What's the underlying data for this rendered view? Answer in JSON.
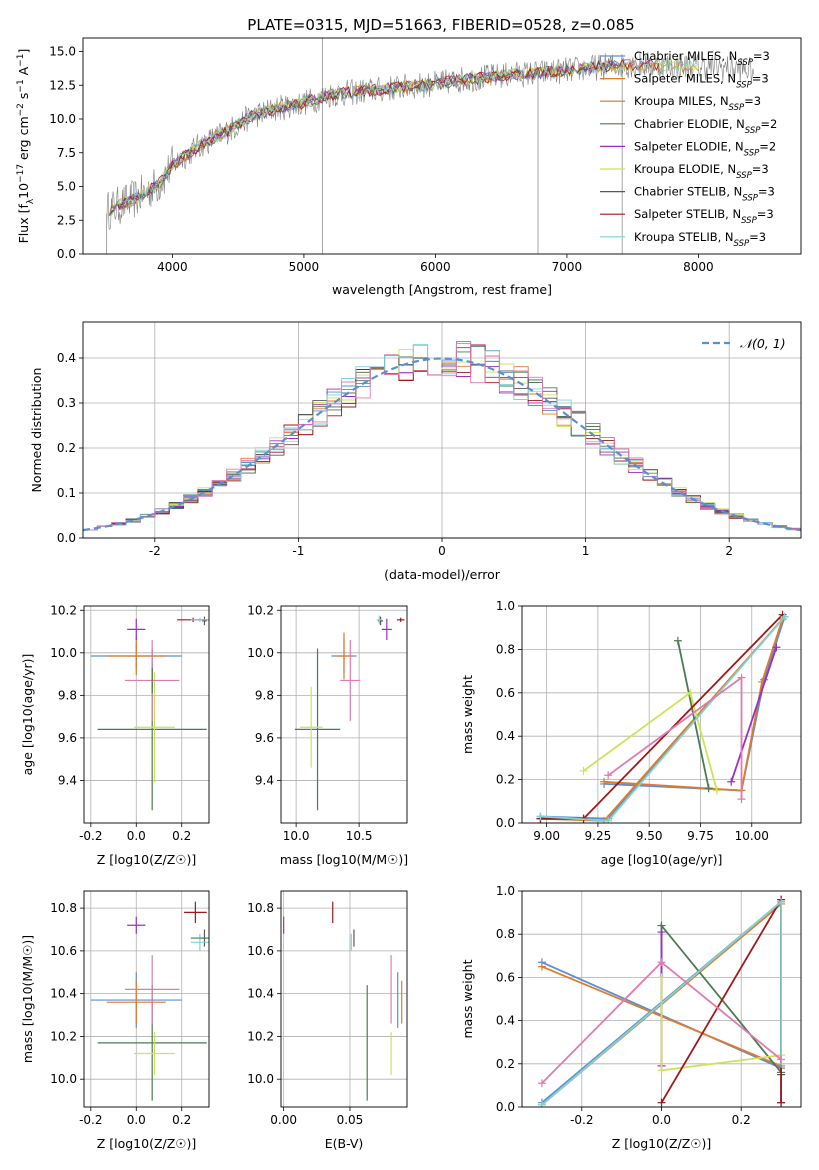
{
  "figure_title": "PLATE=0315, MJD=51663, FIBERID=0528, z=0.085",
  "model_colors": [
    "#5b8fd0",
    "#e07b2a",
    "#4c7a55",
    "#9b2fc4",
    "#cde35a",
    "#595959",
    "#a01818",
    "#7fd3d8",
    "#e07bb0"
  ],
  "chart_data": [
    {
      "id": "spectrum",
      "type": "line",
      "title": "PLATE=0315, MJD=51663, FIBERID=0528, z=0.085",
      "xlabel": "wavelength [Angstrom, rest frame]",
      "ylabel": "Flux [f_λ 10^-17 erg cm^-2 s^-1 A^-1]",
      "xlim": [
        3320,
        8780
      ],
      "ylim": [
        0,
        16
      ],
      "xticks": [
        4000,
        5000,
        6000,
        7000,
        8000
      ],
      "yticks": [
        0.0,
        2.5,
        5.0,
        7.5,
        10.0,
        12.5,
        15.0
      ],
      "grid": false,
      "legend_position": "right",
      "data_series": {
        "name": "",
        "color": "#808080",
        "x": [
          3500,
          3700,
          3900,
          4000,
          4200,
          4400,
          4600,
          4800,
          5000,
          5200,
          5400,
          5600,
          5800,
          6000,
          6200,
          6400,
          6600,
          6800,
          7000,
          7200,
          7400,
          7600,
          7800,
          8000,
          8200,
          8400
        ],
        "y": [
          3.2,
          4.0,
          5.2,
          6.6,
          8.0,
          9.0,
          10.2,
          10.8,
          11.2,
          11.8,
          12.0,
          12.2,
          12.4,
          12.6,
          12.9,
          13.1,
          13.3,
          13.4,
          13.6,
          13.8,
          14.0,
          14.0,
          13.9,
          13.9,
          13.8,
          13.6
        ]
      },
      "series": [
        {
          "name": "Chabrier MILES, N_SSP=3",
          "color": "#5b8fd0"
        },
        {
          "name": "Salpeter MILES, N_SSP=3",
          "color": "#e07b2a"
        },
        {
          "name": "Kroupa MILES, N_SSP=3",
          "color": "#cc7a2b"
        },
        {
          "name": "Chabrier ELODIE, N_SSP=2",
          "color": "#4c7a55"
        },
        {
          "name": "Salpeter ELODIE, N_SSP=2",
          "color": "#9b2fc4"
        },
        {
          "name": "Kroupa ELODIE, N_SSP=3",
          "color": "#cde35a"
        },
        {
          "name": "Chabrier STELIB, N_SSP=3",
          "color": "#595959"
        },
        {
          "name": "Salpeter STELIB, N_SSP=3",
          "color": "#a01818"
        },
        {
          "name": "Kroupa STELIB, N_SSP=3",
          "color": "#7fd3d8"
        }
      ]
    },
    {
      "id": "residuals",
      "type": "line",
      "xlabel": "(data-model)/error",
      "ylabel": "Normed distribution",
      "xlim": [
        -2.5,
        2.5
      ],
      "ylim": [
        0,
        0.48
      ],
      "xticks": [
        -2,
        -1,
        0,
        1,
        2
      ],
      "yticks": [
        0.0,
        0.1,
        0.2,
        0.3,
        0.4
      ],
      "grid": true,
      "legend_position": "top-right",
      "series": [
        {
          "name": "𝒩(0, 1)",
          "color": "#5b8fd0",
          "style": "dashed",
          "mu": 0,
          "sigma": 1
        }
      ],
      "histogram_bin_width": 0.1
    },
    {
      "id": "age-vs-Z",
      "type": "scatter",
      "xlabel": "Z [log10(Z/Z☉)]",
      "ylabel": "age [log10(age/yr)]",
      "xlim": [
        -0.23,
        0.32
      ],
      "ylim": [
        9.2,
        10.22
      ],
      "xticks": [
        -0.2,
        0.0,
        0.2
      ],
      "yticks": [
        9.4,
        9.6,
        9.8,
        10.0,
        10.2
      ],
      "grid": true,
      "points": [
        {
          "c": 0,
          "x": 0.0,
          "y": 9.985,
          "xerr": 0.2,
          "yerr": 0.06
        },
        {
          "c": 1,
          "x": 0.0,
          "y": 9.985,
          "xerr": 0.13,
          "yerr": 0.09
        },
        {
          "c": 2,
          "x": 0.07,
          "y": 9.64,
          "xerr": 0.24,
          "yerr": 0.38
        },
        {
          "c": 3,
          "x": 0.0,
          "y": 10.11,
          "xerr": 0.04,
          "yerr": 0.05
        },
        {
          "c": 4,
          "x": 0.08,
          "y": 9.65,
          "xerr": 0.09,
          "yerr": 0.26
        },
        {
          "c": 5,
          "x": 0.3,
          "y": 10.15,
          "xerr": 0.01,
          "yerr": 0.02
        },
        {
          "c": 6,
          "x": 0.25,
          "y": 10.155,
          "xerr": 0.07,
          "yerr": 0.01
        },
        {
          "c": 7,
          "x": 0.28,
          "y": 10.155,
          "xerr": 0.04,
          "yerr": 0.01
        },
        {
          "c": 8,
          "x": 0.07,
          "y": 9.87,
          "xerr": 0.12,
          "yerr": 0.19
        },
        {
          "c": 2,
          "x": 0.07,
          "y": 9.87,
          "xerr": 0.0,
          "yerr": 0.06
        }
      ]
    },
    {
      "id": "age-vs-mass",
      "type": "scatter",
      "xlabel": "mass [log10(M/M☉)]",
      "ylabel": "",
      "xlim": [
        9.88,
        10.88
      ],
      "ylim": [
        9.2,
        10.22
      ],
      "xticks": [
        10.0,
        10.5
      ],
      "yticks": [
        9.4,
        9.6,
        9.8,
        10.0,
        10.2
      ],
      "grid": true,
      "points": [
        {
          "c": 0,
          "x": 10.38,
          "y": 9.985,
          "xerr": 0.1,
          "yerr": 0.08
        },
        {
          "c": 1,
          "x": 10.38,
          "y": 9.985,
          "xerr": 0.06,
          "yerr": 0.11
        },
        {
          "c": 2,
          "x": 10.17,
          "y": 9.64,
          "xerr": 0.18,
          "yerr": 0.38
        },
        {
          "c": 3,
          "x": 10.72,
          "y": 10.11,
          "xerr": 0.04,
          "yerr": 0.05
        },
        {
          "c": 4,
          "x": 10.12,
          "y": 9.65,
          "xerr": 0.09,
          "yerr": 0.19
        },
        {
          "c": 5,
          "x": 10.67,
          "y": 10.15,
          "xerr": 0.02,
          "yerr": 0.02
        },
        {
          "c": 6,
          "x": 10.83,
          "y": 10.155,
          "xerr": 0.03,
          "yerr": 0.01
        },
        {
          "c": 7,
          "x": 10.66,
          "y": 10.155,
          "xerr": 0.02,
          "yerr": 0.02
        },
        {
          "c": 8,
          "x": 10.43,
          "y": 9.87,
          "xerr": 0.08,
          "yerr": 0.19
        }
      ]
    },
    {
      "id": "massweight-vs-age",
      "type": "line",
      "xlabel": "age [log10(age/yr)]",
      "ylabel": "mass weight",
      "xlim": [
        8.88,
        10.24
      ],
      "ylim": [
        0,
        1.0
      ],
      "xticks": [
        9.0,
        9.25,
        9.5,
        9.75,
        10.0
      ],
      "yticks": [
        0.0,
        0.2,
        0.4,
        0.6,
        0.8,
        1.0
      ],
      "grid": true,
      "series": [
        {
          "name": "Chabrier MILES",
          "c": 0,
          "x": [
            8.97,
            9.3,
            10.16,
            10.06,
            9.95,
            9.28
          ],
          "y": [
            0.03,
            0.02,
            0.95,
            0.66,
            0.15,
            0.18
          ]
        },
        {
          "name": "Salpeter MILES",
          "c": 1,
          "x": [
            8.97,
            9.28,
            10.15,
            10.05,
            9.95,
            9.28
          ],
          "y": [
            0.02,
            0.01,
            0.94,
            0.65,
            0.15,
            0.19
          ]
        },
        {
          "name": "Chabrier ELODIE",
          "c": 2,
          "x": [
            9.79,
            9.64
          ],
          "y": [
            0.16,
            0.84
          ]
        },
        {
          "name": "Salpeter ELODIE",
          "c": 3,
          "x": [
            9.9,
            10.12
          ],
          "y": [
            0.19,
            0.81
          ]
        },
        {
          "name": "Kroupa ELODIE",
          "c": 4,
          "x": [
            9.18,
            9.7,
            9.83
          ],
          "y": [
            0.24,
            0.6,
            0.15
          ]
        },
        {
          "name": "Chabrier STELIB",
          "c": 5,
          "x": [
            8.97,
            9.18
          ],
          "y": [
            0.02,
            0.02
          ]
        },
        {
          "name": "Salpeter STELIB",
          "c": 6,
          "x": [
            8.97,
            9.18,
            10.15
          ],
          "y": [
            0.02,
            0.02,
            0.96
          ]
        },
        {
          "name": "Kroupa STELIB",
          "c": 7,
          "x": [
            8.97,
            9.3,
            10.16
          ],
          "y": [
            0.03,
            0.01,
            0.95
          ]
        },
        {
          "name": "Kroupa MILES",
          "c": 8,
          "x": [
            9.3,
            9.95,
            9.95
          ],
          "y": [
            0.22,
            0.67,
            0.11
          ]
        }
      ]
    },
    {
      "id": "mass-vs-Z",
      "type": "scatter",
      "xlabel": "Z [log10(Z/Z☉)]",
      "ylabel": "mass [log10(M/M☉)]",
      "xlim": [
        -0.23,
        0.32
      ],
      "ylim": [
        9.87,
        10.88
      ],
      "xticks": [
        -0.2,
        0.0,
        0.2
      ],
      "yticks": [
        10.0,
        10.2,
        10.4,
        10.6,
        10.8
      ],
      "grid": true,
      "points": [
        {
          "c": 0,
          "x": 0.0,
          "y": 10.37,
          "xerr": 0.2,
          "yerr": 0.13
        },
        {
          "c": 1,
          "x": 0.0,
          "y": 10.36,
          "xerr": 0.13,
          "yerr": 0.1
        },
        {
          "c": 2,
          "x": 0.07,
          "y": 10.17,
          "xerr": 0.24,
          "yerr": 0.27
        },
        {
          "c": 3,
          "x": 0.0,
          "y": 10.72,
          "xerr": 0.04,
          "yerr": 0.04
        },
        {
          "c": 4,
          "x": 0.08,
          "y": 10.12,
          "xerr": 0.09,
          "yerr": 0.1
        },
        {
          "c": 5,
          "x": 0.3,
          "y": 10.66,
          "xerr": 0.01,
          "yerr": 0.04
        },
        {
          "c": 6,
          "x": 0.26,
          "y": 10.78,
          "xerr": 0.05,
          "yerr": 0.05
        },
        {
          "c": 7,
          "x": 0.28,
          "y": 10.64,
          "xerr": 0.04,
          "yerr": 0.04
        },
        {
          "c": 8,
          "x": 0.07,
          "y": 10.42,
          "xerr": 0.12,
          "yerr": 0.16
        },
        {
          "c": 2,
          "x": 0.3,
          "y": 10.66,
          "xerr": 0.06,
          "yerr": 0.0
        }
      ]
    },
    {
      "id": "mass-vs-ebv",
      "type": "scatter",
      "xlabel": "E(B-V)",
      "ylabel": "",
      "xlim": [
        -0.002,
        0.093
      ],
      "ylim": [
        9.87,
        10.88
      ],
      "xticks": [
        0.0,
        0.05
      ],
      "yticks": [
        10.0,
        10.2,
        10.4,
        10.6,
        10.8
      ],
      "grid": true,
      "points": [
        {
          "c": 0,
          "x": 0.086,
          "y": 10.37,
          "xerr": 0,
          "yerr": 0.13
        },
        {
          "c": 1,
          "x": 0.089,
          "y": 10.36,
          "xerr": 0,
          "yerr": 0.1
        },
        {
          "c": 2,
          "x": 0.063,
          "y": 10.17,
          "xerr": 0,
          "yerr": 0.27
        },
        {
          "c": 3,
          "x": 0.0,
          "y": 10.72,
          "xerr": 0,
          "yerr": 0.04
        },
        {
          "c": 4,
          "x": 0.081,
          "y": 10.12,
          "xerr": 0,
          "yerr": 0.1
        },
        {
          "c": 5,
          "x": 0.053,
          "y": 10.66,
          "xerr": 0,
          "yerr": 0.04
        },
        {
          "c": 6,
          "x": 0.037,
          "y": 10.78,
          "xerr": 0,
          "yerr": 0.05
        },
        {
          "c": 7,
          "x": 0.051,
          "y": 10.64,
          "xerr": 0,
          "yerr": 0.04
        },
        {
          "c": 8,
          "x": 0.081,
          "y": 10.42,
          "xerr": 0,
          "yerr": 0.16
        }
      ]
    },
    {
      "id": "massweight-vs-Z",
      "type": "line",
      "xlabel": "Z [log10(Z/Z☉)]",
      "ylabel": "mass weight",
      "xlim": [
        -0.35,
        0.35
      ],
      "ylim": [
        0,
        1.0
      ],
      "xticks": [
        -0.2,
        0.0,
        0.2
      ],
      "yticks": [
        0.0,
        0.2,
        0.4,
        0.6,
        0.8,
        1.0
      ],
      "grid": true,
      "series": [
        {
          "name": "Chabrier MILES",
          "c": 0,
          "x": [
            -0.3,
            0.3,
            0.3,
            -0.3
          ],
          "y": [
            0.67,
            0.18,
            0.95,
            0.02
          ]
        },
        {
          "name": "Salpeter MILES",
          "c": 1,
          "x": [
            -0.3,
            0.3,
            0.3,
            -0.3
          ],
          "y": [
            0.65,
            0.19,
            0.94,
            0.01
          ]
        },
        {
          "name": "Chabrier ELODIE",
          "c": 2,
          "x": [
            0.0,
            0.0,
            0.3,
            0.3
          ],
          "y": [
            0.19,
            0.84,
            0.16,
            0.95
          ]
        },
        {
          "name": "Salpeter ELODIE",
          "c": 3,
          "x": [
            0.0,
            0.0
          ],
          "y": [
            0.19,
            0.81
          ]
        },
        {
          "name": "Kroupa ELODIE",
          "c": 4,
          "x": [
            0.0,
            0.0,
            0.3
          ],
          "y": [
            0.6,
            0.17,
            0.24
          ]
        },
        {
          "name": "Chabrier STELIB",
          "c": 5,
          "x": [
            0.3,
            0.3
          ],
          "y": [
            0.02,
            0.15
          ]
        },
        {
          "name": "Salpeter STELIB",
          "c": 6,
          "x": [
            0.0,
            0.3,
            0.3
          ],
          "y": [
            0.02,
            0.96,
            0.02
          ]
        },
        {
          "name": "Kroupa STELIB",
          "c": 7,
          "x": [
            -0.3,
            0.3,
            0.3
          ],
          "y": [
            0.01,
            0.95,
            0.2
          ]
        },
        {
          "name": "Kroupa MILES",
          "c": 8,
          "x": [
            -0.3,
            0.0,
            0.3
          ],
          "y": [
            0.11,
            0.67,
            0.22
          ]
        }
      ]
    }
  ]
}
